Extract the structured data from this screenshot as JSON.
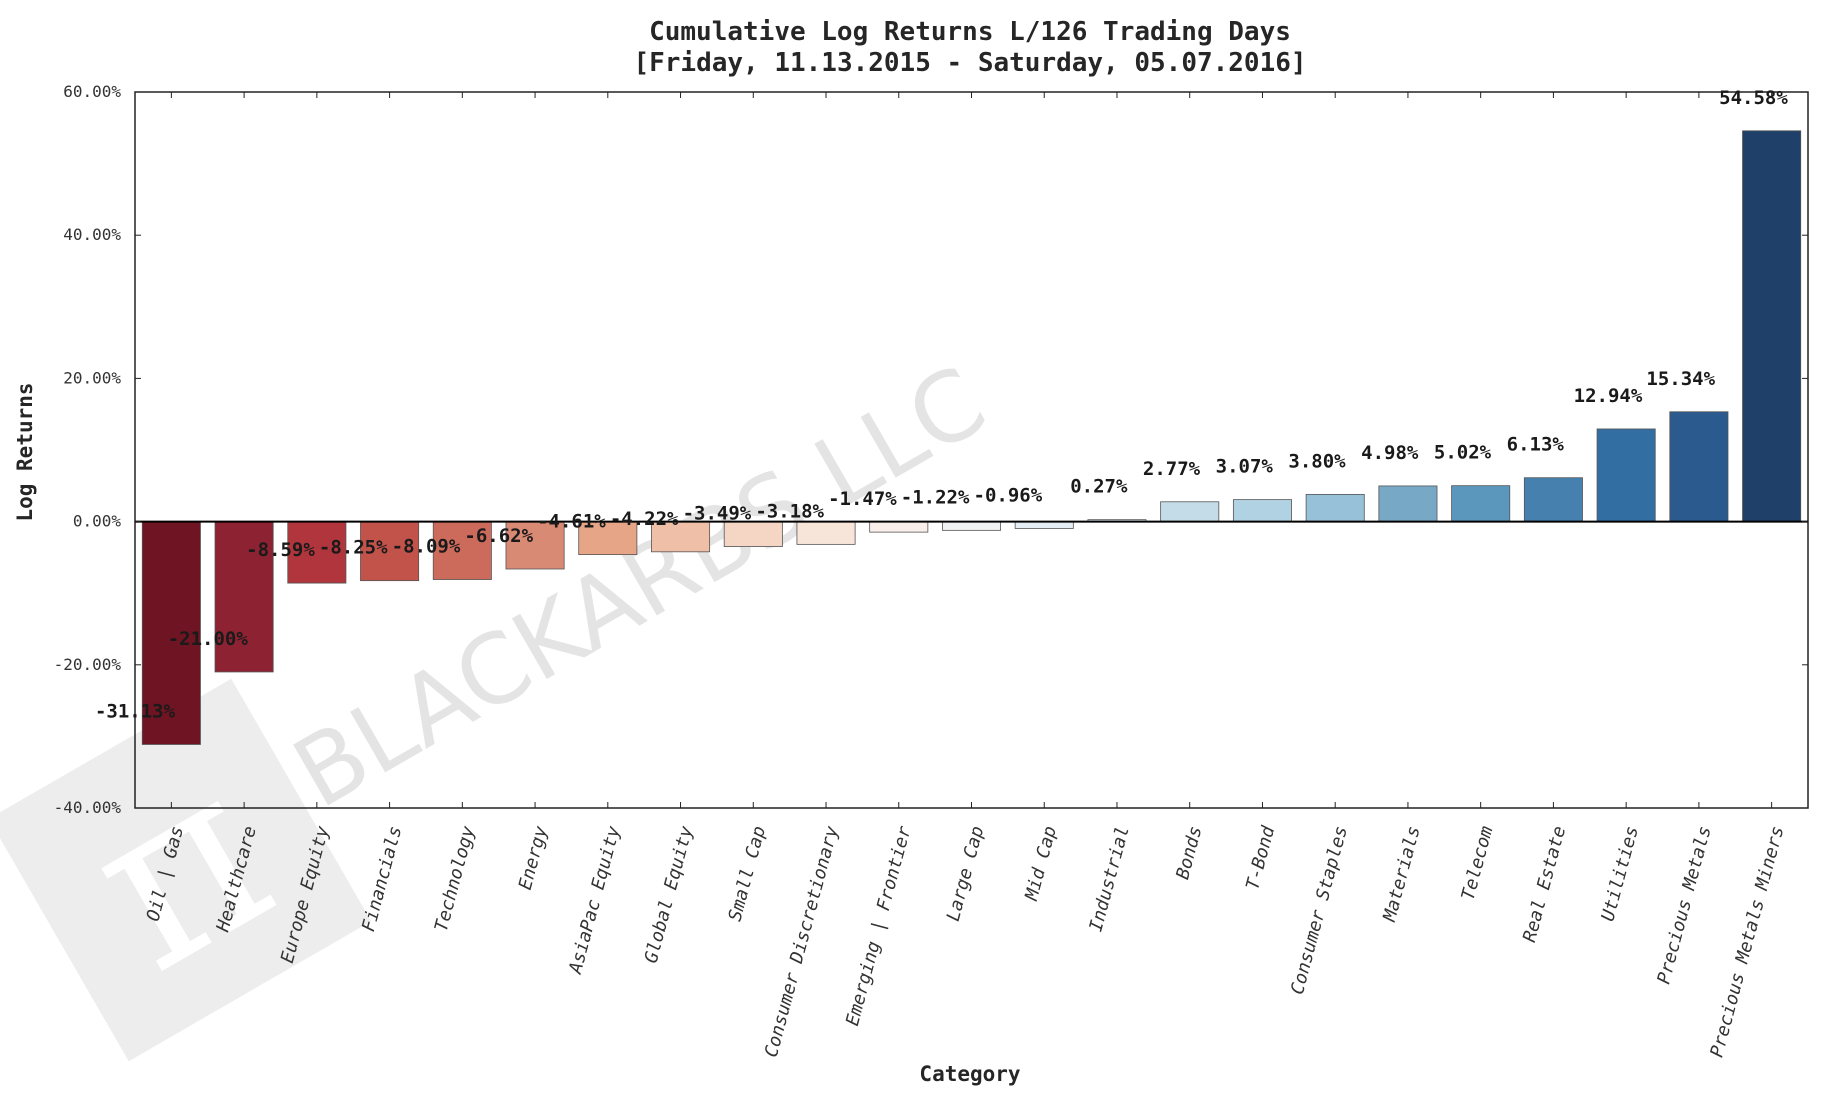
{
  "watermark": {
    "text": "BLACKARBS LLC",
    "logo_glyph": "π",
    "icon": "pi-logo-icon"
  },
  "chart_data": {
    "type": "bar",
    "title": "Cumulative Log Returns L/126 Trading Days",
    "subtitle": "[Friday, 11.13.2015 - Saturday, 05.07.2016]",
    "xlabel": "Category",
    "ylabel": "Log Returns",
    "ylim": [
      -40,
      60
    ],
    "yticks": [
      "60.00%",
      "40.00%",
      "20.00%",
      "0.00%",
      "-20.00%",
      "-40.00%"
    ],
    "ytick_values": [
      60,
      40,
      20,
      0,
      -20,
      -40
    ],
    "grid": false,
    "categories": [
      "Oil | Gas",
      "Healthcare",
      "Europe Equity",
      "Financials",
      "Technology",
      "Energy",
      "AsiaPac Equity",
      "Global Equity",
      "Small Cap",
      "Consumer Discretionary",
      "Emerging | Frontier",
      "Large Cap",
      "Mid Cap",
      "Industrial",
      "Bonds",
      "T-Bond",
      "Consumer Staples",
      "Materials",
      "Telecom",
      "Real Estate",
      "Utilities",
      "Precious Metals",
      "Precious Metals Miners"
    ],
    "values": [
      -31.13,
      -21.0,
      -8.59,
      -8.25,
      -8.09,
      -6.62,
      -4.61,
      -4.22,
      -3.49,
      -3.18,
      -1.47,
      -1.22,
      -0.96,
      0.27,
      2.77,
      3.07,
      3.8,
      4.98,
      5.02,
      6.13,
      12.94,
      15.34,
      54.58
    ],
    "value_labels": [
      "-31.13%",
      "-21.00%",
      "-8.59%",
      "-8.25%",
      "-8.09%",
      "-6.62%",
      "-4.61%",
      "-4.22%",
      "-3.49%",
      "-3.18%",
      "-1.47%",
      "-1.22%",
      "-0.96%",
      "0.27%",
      "2.77%",
      "3.07%",
      "3.80%",
      "4.98%",
      "5.02%",
      "6.13%",
      "12.94%",
      "15.34%",
      "54.58%"
    ],
    "colors": [
      "#6e1423",
      "#8d2232",
      "#b0353c",
      "#c2534b",
      "#cc6b5c",
      "#d98a74",
      "#e6a586",
      "#efc0a7",
      "#f5d5c4",
      "#f8e5da",
      "#f9eeea",
      "#f1f2f4",
      "#e5eef4",
      "#d6e7f0",
      "#c4dce8",
      "#b1d2e2",
      "#96c1d9",
      "#77a9c7",
      "#5b97bd",
      "#4580ae",
      "#336ea2",
      "#2b5b8e",
      "#1f4068"
    ],
    "bar_edge_color": "#555555"
  }
}
